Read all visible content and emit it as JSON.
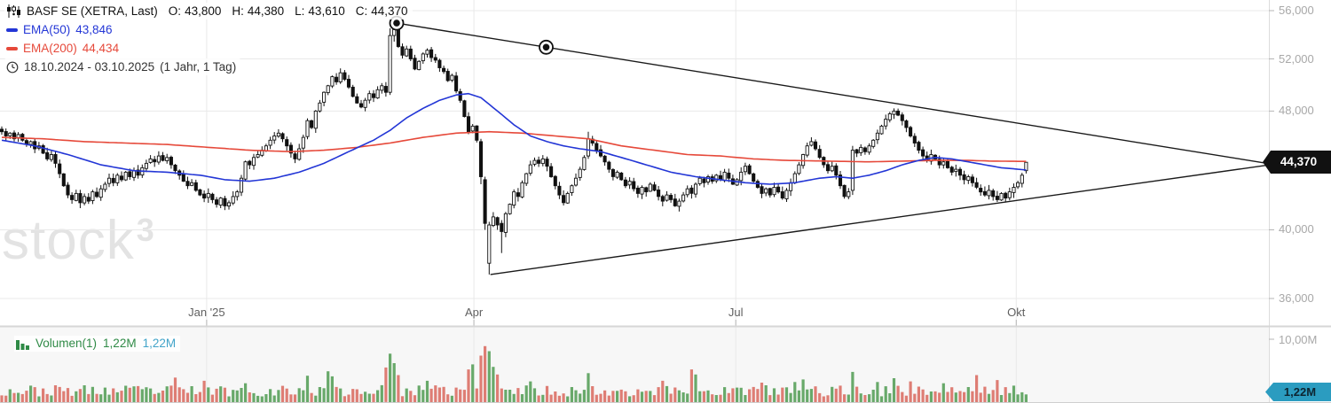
{
  "legend": {
    "symbol": "BASF SE (XETRA, Last)",
    "o_label": "O:",
    "o": "43,800",
    "h_label": "H:",
    "h": "44,380",
    "l_label": "L:",
    "l": "43,610",
    "c_label": "C:",
    "c": "44,370",
    "ema50_label": "EMA(50)",
    "ema50_value": "43,846",
    "ema200_label": "EMA(200)",
    "ema200_value": "44,434",
    "date_range": "18.10.2024 - 03.10.2025",
    "interval": "(1 Jahr, 1 Tag)"
  },
  "volume_legend": {
    "label": "Volumen(1)",
    "value": "1,22M",
    "value2": "1,22M"
  },
  "watermark": {
    "text": "stock",
    "sup": "3"
  },
  "axes": {
    "price_ticks": [
      {
        "label": "56,000",
        "value_k": 56
      },
      {
        "label": "52,000",
        "value_k": 52
      },
      {
        "label": "48,000",
        "value_k": 48
      },
      {
        "label": "40,000",
        "value_k": 40
      },
      {
        "label": "36,000",
        "value_k": 36
      }
    ],
    "last_price": "44,370",
    "volume_tick": "10,00M",
    "last_volume": "1,22M",
    "months": [
      {
        "label": "Jan '25",
        "day": 49.6
      },
      {
        "label": "Apr",
        "day": 114.3
      },
      {
        "label": "Jul",
        "day": 177.7
      },
      {
        "label": "Okt",
        "day": 245.6
      }
    ]
  },
  "colors": {
    "up": "#ffffff",
    "down": "#111111",
    "ema50": "#2336d6",
    "ema200": "#e6493a",
    "vol_up": "#68a96a",
    "vol_down": "#de7d74",
    "trendline": "#1a1a1a",
    "grid": "#e9e9e9",
    "axis_line": "#dcdcdc",
    "divider": "#d6d6d6",
    "tick": "#b5b5b5",
    "last_price_bg": "#111111",
    "last_vol_bg": "#2b9cc0",
    "watermark": "#e3e3e3"
  },
  "chart_data": {
    "type": "candlestick",
    "title": "BASF SE (XETRA) daily candles with EMA(50), EMA(200), trendline triangle and volume",
    "x_unit": "trading_day_index",
    "date_range": [
      "18.10.2024",
      "03.10.2025"
    ],
    "interval": "1 Tag",
    "y_scale": "log",
    "price_axis_ticks_k": [
      56,
      52,
      48,
      40,
      36
    ],
    "last_close": 44370,
    "last_ohlc_k": [
      43.8,
      44.38,
      43.61,
      44.37
    ],
    "ema50_last": 43.846,
    "ema200_last": 44.434,
    "closes_k": [
      46.5,
      46.2,
      46.4,
      46.0,
      46.3,
      45.9,
      45.6,
      45.8,
      45.3,
      45.5,
      45.0,
      44.6,
      44.9,
      44.3,
      43.6,
      42.8,
      42.2,
      41.9,
      42.3,
      41.7,
      42.1,
      41.8,
      42.4,
      42.1,
      42.6,
      42.9,
      43.3,
      43.0,
      43.5,
      43.2,
      43.7,
      43.4,
      43.8,
      43.5,
      44.0,
      44.3,
      44.6,
      44.4,
      44.8,
      44.5,
      44.7,
      44.2,
      43.8,
      43.5,
      43.1,
      42.8,
      43.0,
      42.5,
      42.2,
      42.0,
      42.3,
      41.9,
      41.6,
      42.0,
      41.5,
      41.7,
      42.1,
      42.4,
      43.3,
      44.4,
      44.2,
      44.7,
      44.9,
      45.2,
      45.5,
      45.9,
      46.2,
      46.4,
      46.0,
      45.5,
      45.0,
      44.6,
      45.3,
      46.1,
      47.3,
      46.8,
      48.0,
      48.6,
      49.4,
      49.9,
      50.6,
      50.2,
      50.9,
      50.4,
      49.8,
      49.1,
      48.6,
      48.3,
      48.8,
      49.3,
      49.0,
      49.6,
      49.9,
      49.4,
      53.9,
      54.4,
      53.0,
      52.3,
      52.8,
      52.0,
      51.2,
      51.8,
      52.4,
      52.7,
      52.1,
      51.9,
      51.3,
      51.0,
      50.3,
      50.7,
      49.5,
      48.8,
      47.6,
      46.5,
      46.9,
      45.9,
      43.4,
      40.4,
      40.3,
      40.8,
      40.3,
      39.9,
      41.0,
      41.6,
      42.4,
      42.1,
      43.0,
      43.6,
      44.2,
      44.5,
      44.3,
      44.6,
      44.1,
      43.4,
      42.8,
      42.2,
      41.7,
      42.3,
      42.8,
      43.3,
      43.9,
      44.7,
      46.0,
      45.7,
      45.2,
      44.8,
      44.4,
      43.9,
      43.4,
      43.7,
      43.2,
      42.8,
      43.1,
      42.6,
      42.3,
      42.7,
      42.4,
      42.9,
      42.5,
      42.1,
      41.8,
      42.2,
      41.9,
      41.5,
      41.8,
      42.2,
      42.6,
      42.3,
      42.9,
      43.3,
      43.0,
      43.4,
      43.1,
      43.5,
      43.2,
      43.7,
      43.3,
      42.9,
      43.2,
      43.7,
      44.1,
      43.6,
      43.1,
      42.7,
      42.3,
      42.6,
      42.2,
      42.7,
      42.4,
      42.0,
      42.5,
      43.0,
      43.6,
      44.2,
      44.9,
      45.5,
      45.8,
      45.3,
      44.7,
      44.2,
      43.8,
      44.1,
      43.5,
      42.8,
      42.1,
      42.4,
      45.2,
      45.0,
      45.4,
      45.1,
      45.5,
      45.9,
      46.4,
      46.9,
      47.4,
      47.8,
      48.0,
      47.7,
      47.3,
      46.8,
      46.2,
      45.7,
      45.2,
      44.8,
      44.5,
      44.9,
      44.6,
      44.2,
      44.4,
      44.0,
      43.7,
      43.9,
      43.5,
      43.2,
      43.4,
      43.0,
      42.7,
      42.4,
      42.2,
      42.5,
      42.1,
      41.9,
      42.3,
      42.0,
      42.4,
      42.7,
      43.0,
      43.5,
      44.37
    ],
    "ohlc_overrides_k": {
      "94": [
        49.4,
        54.5,
        49.2,
        53.9
      ],
      "95": [
        53.9,
        55.05,
        53.4,
        54.4
      ],
      "116": [
        45.8,
        46.0,
        42.9,
        43.4
      ],
      "117": [
        43.2,
        43.4,
        40.0,
        40.4
      ],
      "118": [
        38.0,
        40.5,
        37.35,
        40.3
      ],
      "121": [
        40.4,
        40.6,
        38.6,
        39.9
      ],
      "142": [
        44.8,
        46.5,
        44.6,
        46.0
      ],
      "206": [
        42.5,
        45.5,
        42.2,
        45.2
      ],
      "248": [
        43.8,
        44.38,
        43.61,
        44.37
      ]
    },
    "ema50_keyframes": [
      [
        0,
        45.9
      ],
      [
        8,
        45.5
      ],
      [
        16,
        44.9
      ],
      [
        24,
        44.2
      ],
      [
        32,
        43.8
      ],
      [
        40,
        43.7
      ],
      [
        48,
        43.5
      ],
      [
        54,
        43.2
      ],
      [
        60,
        43.1
      ],
      [
        66,
        43.3
      ],
      [
        72,
        43.7
      ],
      [
        78,
        44.3
      ],
      [
        84,
        45.1
      ],
      [
        90,
        45.9
      ],
      [
        94,
        46.6
      ],
      [
        98,
        47.5
      ],
      [
        102,
        48.2
      ],
      [
        106,
        48.8
      ],
      [
        110,
        49.2
      ],
      [
        113,
        49.3
      ],
      [
        116,
        49.0
      ],
      [
        120,
        48.0
      ],
      [
        124,
        47.0
      ],
      [
        128,
        46.2
      ],
      [
        132,
        45.8
      ],
      [
        136,
        45.5
      ],
      [
        140,
        45.3
      ],
      [
        145,
        45.1
      ],
      [
        150,
        44.7
      ],
      [
        156,
        44.2
      ],
      [
        162,
        43.7
      ],
      [
        168,
        43.4
      ],
      [
        174,
        43.2
      ],
      [
        180,
        43.0
      ],
      [
        186,
        42.9
      ],
      [
        192,
        43.0
      ],
      [
        198,
        43.3
      ],
      [
        202,
        43.4
      ],
      [
        206,
        43.3
      ],
      [
        210,
        43.5
      ],
      [
        214,
        43.8
      ],
      [
        218,
        44.2
      ],
      [
        222,
        44.5
      ],
      [
        226,
        44.7
      ],
      [
        230,
        44.6
      ],
      [
        234,
        44.4
      ],
      [
        238,
        44.2
      ],
      [
        242,
        44.0
      ],
      [
        248,
        43.85
      ]
    ],
    "ema200_keyframes": [
      [
        0,
        46.1
      ],
      [
        10,
        46.0
      ],
      [
        20,
        45.8
      ],
      [
        30,
        45.7
      ],
      [
        40,
        45.6
      ],
      [
        50,
        45.4
      ],
      [
        60,
        45.2
      ],
      [
        70,
        45.1
      ],
      [
        78,
        45.2
      ],
      [
        86,
        45.4
      ],
      [
        94,
        45.7
      ],
      [
        102,
        46.1
      ],
      [
        110,
        46.4
      ],
      [
        118,
        46.5
      ],
      [
        126,
        46.4
      ],
      [
        134,
        46.2
      ],
      [
        142,
        46.0
      ],
      [
        150,
        45.5
      ],
      [
        158,
        45.2
      ],
      [
        166,
        44.9
      ],
      [
        174,
        44.8
      ],
      [
        182,
        44.6
      ],
      [
        190,
        44.5
      ],
      [
        200,
        44.45
      ],
      [
        210,
        44.4
      ],
      [
        218,
        44.45
      ],
      [
        226,
        44.5
      ],
      [
        234,
        44.5
      ],
      [
        240,
        44.45
      ],
      [
        248,
        44.43
      ]
    ],
    "trendlines": [
      {
        "name": "upper-descending",
        "from_day": 95.6,
        "from_price_k": 54.94,
        "to_day": 307,
        "to_price_k": 44.27,
        "markers_at_days": [
          95.6,
          131.8
        ]
      },
      {
        "name": "lower-ascending",
        "from_day": 118.3,
        "from_price_k": 37.35,
        "to_day": 307,
        "to_price_k": 44.2,
        "markers_at_days": []
      }
    ],
    "volume": {
      "axis_max_M": 10.0,
      "last_M": 1.22,
      "spikes_M": {
        "42": 3.9,
        "49": 3.4,
        "59": 3.0,
        "74": 4.2,
        "79": 4.9,
        "80": 4.1,
        "93": 5.5,
        "94": 7.7,
        "95": 6.2,
        "96": 4.3,
        "103": 3.4,
        "113": 5.2,
        "114": 6.0,
        "116": 7.4,
        "117": 8.9,
        "118": 8.1,
        "119": 5.6,
        "120": 4.4,
        "128": 3.3,
        "142": 4.6,
        "160": 3.4,
        "167": 5.2,
        "168": 4.4,
        "184": 3.1,
        "192": 3.2,
        "194": 3.6,
        "206": 4.8,
        "212": 3.2,
        "216": 3.8,
        "220": 3.3,
        "228": 3.0,
        "236": 4.3,
        "241": 3.5,
        "248": 1.22
      }
    }
  }
}
